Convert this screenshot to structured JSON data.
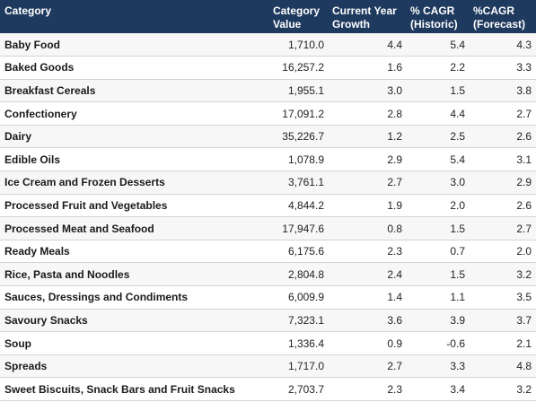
{
  "table": {
    "headers": [
      "Category",
      "Category Value",
      "Current Year Growth",
      "% CAGR (Historic)",
      "%CAGR (Forecast)"
    ],
    "rows": [
      [
        "Baby Food",
        "1,710.0",
        "4.4",
        "5.4",
        "4.3"
      ],
      [
        "Baked Goods",
        "16,257.2",
        "1.6",
        "2.2",
        "3.3"
      ],
      [
        "Breakfast Cereals",
        "1,955.1",
        "3.0",
        "1.5",
        "3.8"
      ],
      [
        "Confectionery",
        "17,091.2",
        "2.8",
        "4.4",
        "2.7"
      ],
      [
        "Dairy",
        "35,226.7",
        "1.2",
        "2.5",
        "2.6"
      ],
      [
        "Edible Oils",
        "1,078.9",
        "2.9",
        "5.4",
        "3.1"
      ],
      [
        "Ice Cream and Frozen Desserts",
        "3,761.1",
        "2.7",
        "3.0",
        "2.9"
      ],
      [
        "Processed Fruit and Vegetables",
        "4,844.2",
        "1.9",
        "2.0",
        "2.6"
      ],
      [
        "Processed Meat and Seafood",
        "17,947.6",
        "0.8",
        "1.5",
        "2.7"
      ],
      [
        "Ready Meals",
        "6,175.6",
        "2.3",
        "0.7",
        "2.0"
      ],
      [
        "Rice, Pasta and Noodles",
        "2,804.8",
        "2.4",
        "1.5",
        "3.2"
      ],
      [
        "Sauces, Dressings and Condiments",
        "6,009.9",
        "1.4",
        "1.1",
        "3.5"
      ],
      [
        "Savoury Snacks",
        "7,323.1",
        "3.6",
        "3.9",
        "3.7"
      ],
      [
        "Soup",
        "1,336.4",
        "0.9",
        "-0.6",
        "2.1"
      ],
      [
        "Spreads",
        "1,717.0",
        "2.7",
        "3.3",
        "4.8"
      ],
      [
        "Sweet Biscuits, Snack Bars and Fruit Snacks",
        "2,703.7",
        "2.3",
        "3.4",
        "3.2"
      ]
    ]
  },
  "colors": {
    "header_background": "#1f3a5f",
    "header_text": "#ffffff",
    "row_stripe": "#f7f7f7",
    "row_border": "#d4d4d4"
  }
}
